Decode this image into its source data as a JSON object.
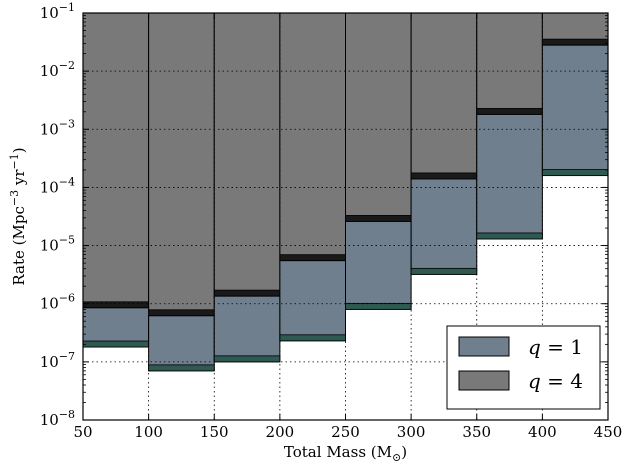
{
  "chart_data": {
    "type": "bar",
    "subtype": "stacked-range-log",
    "x_bins": [
      [
        50,
        100
      ],
      [
        100,
        150
      ],
      [
        150,
        200
      ],
      [
        200,
        250
      ],
      [
        250,
        300
      ],
      [
        300,
        350
      ],
      [
        350,
        400
      ],
      [
        400,
        450
      ]
    ],
    "xticks": [
      50,
      100,
      150,
      200,
      250,
      300,
      350,
      400,
      450
    ],
    "xtick_labels": [
      "50",
      "100",
      "150",
      "200",
      "250",
      "300",
      "350",
      "400",
      "450"
    ],
    "xlim": [
      50,
      450
    ],
    "yscale": "log",
    "ylim": [
      1e-08,
      0.1
    ],
    "ytick_exponents": [
      -8,
      -7,
      -6,
      -5,
      -4,
      -3,
      -2,
      -1
    ],
    "ytick_base": "10",
    "xlabel": "Total Mass (M",
    "xlabel_sub": "⊙",
    "xlabel_end": ")",
    "ylabel": "Rate (Mpc",
    "ylabel_sup1": "−3",
    "ylabel_mid": " yr",
    "ylabel_sup2": "−1",
    "ylabel_end": ")",
    "grid": true,
    "legend_position": "bottom-right",
    "series": [
      {
        "name": "q = 1",
        "legend_label_var": "q",
        "legend_label_rest": " = 1",
        "color": "#6f7f8e",
        "edge_color": "#2f5a52",
        "lower": [
          1.8e-07,
          7e-08,
          1e-07,
          2.3e-07,
          8e-07,
          3.2e-06,
          1.3e-05,
          0.00016
        ],
        "upper": [
          8.5e-07,
          6.2e-07,
          1.35e-06,
          5.5e-06,
          2.6e-05,
          0.00014,
          0.0018,
          0.028
        ]
      },
      {
        "name": "q = 4",
        "legend_label_var": "q",
        "legend_label_rest": " = 4",
        "color": "#797979",
        "edge_color": "#1a1a1a",
        "lower": [
          8.5e-07,
          6.2e-07,
          1.35e-06,
          5.5e-06,
          2.6e-05,
          0.00014,
          0.0018,
          0.028
        ],
        "upper": [
          0.1,
          0.1,
          0.1,
          0.1,
          0.1,
          0.1,
          0.1,
          0.1
        ]
      }
    ]
  }
}
